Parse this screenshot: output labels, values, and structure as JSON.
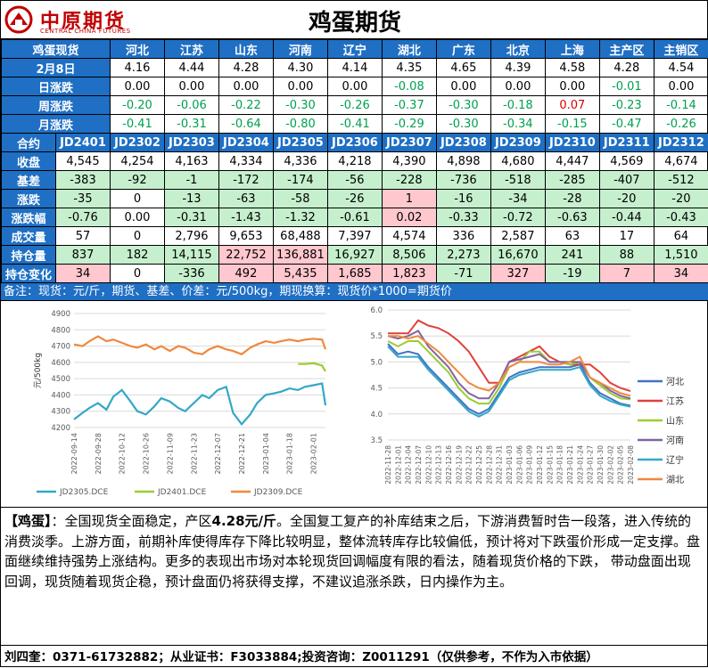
{
  "header": {
    "logo_cn": "中原期货",
    "logo_en": "CENTRAL CHINA FUTURES",
    "title": "鸡蛋期货"
  },
  "spot": {
    "row_label": "鸡蛋现货",
    "regions": [
      "河北",
      "江苏",
      "山东",
      "河南",
      "辽宁",
      "湖北",
      "广东",
      "北京",
      "上海",
      "主产区",
      "主销区"
    ],
    "rows": [
      {
        "label": "2月8日",
        "values": [
          "4.16",
          "4.44",
          "4.28",
          "4.30",
          "4.14",
          "4.35",
          "4.65",
          "4.39",
          "4.58",
          "4.28",
          "4.54"
        ],
        "colors": [
          "k",
          "k",
          "k",
          "k",
          "k",
          "k",
          "k",
          "k",
          "k",
          "k",
          "k"
        ]
      },
      {
        "label": "日涨跌",
        "values": [
          "0.00",
          "0.00",
          "0.00",
          "0.00",
          "0.00",
          "-0.08",
          "0.00",
          "0.00",
          "0.00",
          "-0.01",
          "0.00"
        ],
        "colors": [
          "k",
          "k",
          "k",
          "k",
          "k",
          "g",
          "k",
          "k",
          "k",
          "g",
          "k"
        ]
      },
      {
        "label": "周涨跌",
        "values": [
          "-0.20",
          "-0.06",
          "-0.22",
          "-0.30",
          "-0.26",
          "-0.37",
          "-0.30",
          "-0.18",
          "0.07",
          "-0.23",
          "-0.14"
        ],
        "colors": [
          "g",
          "g",
          "g",
          "g",
          "g",
          "g",
          "g",
          "g",
          "r",
          "g",
          "g"
        ]
      },
      {
        "label": "月涨跌",
        "values": [
          "-0.41",
          "-0.31",
          "-0.64",
          "-0.80",
          "-0.41",
          "-0.29",
          "-0.30",
          "-0.34",
          "-0.15",
          "-0.47",
          "-0.26"
        ],
        "colors": [
          "g",
          "g",
          "g",
          "g",
          "g",
          "g",
          "g",
          "g",
          "g",
          "g",
          "g"
        ]
      }
    ]
  },
  "futures": {
    "row_label": "合约",
    "contracts": [
      "JD2401",
      "JD2302",
      "JD2303",
      "JD2304",
      "JD2305",
      "JD2306",
      "JD2307",
      "JD2308",
      "JD2309",
      "JD2310",
      "JD2311",
      "JD2312"
    ],
    "rows": [
      {
        "label": "收盘",
        "values": [
          "4,545",
          "4,254",
          "4,163",
          "4,334",
          "4,336",
          "4,218",
          "4,390",
          "4,898",
          "4,680",
          "4,447",
          "4,569",
          "4,674"
        ],
        "bg": [
          "w",
          "w",
          "w",
          "w",
          "w",
          "w",
          "w",
          "w",
          "w",
          "w",
          "w",
          "w"
        ]
      },
      {
        "label": "基差",
        "values": [
          "-383",
          "-92",
          "-1",
          "-172",
          "-174",
          "-56",
          "-228",
          "-736",
          "-518",
          "-285",
          "-407",
          "-512"
        ],
        "bg": [
          "g",
          "g",
          "g",
          "g",
          "g",
          "g",
          "g",
          "g",
          "g",
          "g",
          "g",
          "g"
        ]
      },
      {
        "label": "涨跌",
        "values": [
          "-35",
          "0",
          "-13",
          "-63",
          "-58",
          "-26",
          "1",
          "-16",
          "-34",
          "-28",
          "-20",
          "-20"
        ],
        "bg": [
          "g",
          "w",
          "g",
          "g",
          "g",
          "g",
          "r",
          "g",
          "g",
          "g",
          "g",
          "g"
        ]
      },
      {
        "label": "涨跌幅",
        "values": [
          "-0.76",
          "0.00",
          "-0.31",
          "-1.43",
          "-1.32",
          "-0.61",
          "0.02",
          "-0.33",
          "-0.72",
          "-0.63",
          "-0.44",
          "-0.43"
        ],
        "bg": [
          "g",
          "w",
          "g",
          "g",
          "g",
          "g",
          "r",
          "g",
          "g",
          "g",
          "g",
          "g"
        ]
      },
      {
        "label": "成交量",
        "values": [
          "57",
          "0",
          "2,796",
          "9,653",
          "68,488",
          "7,397",
          "4,574",
          "336",
          "2,587",
          "63",
          "17",
          "64"
        ],
        "bg": [
          "w",
          "w",
          "w",
          "w",
          "w",
          "w",
          "w",
          "w",
          "w",
          "w",
          "w",
          "w"
        ]
      },
      {
        "label": "持仓量",
        "values": [
          "837",
          "182",
          "14,115",
          "22,752",
          "136,881",
          "16,927",
          "8,506",
          "2,273",
          "16,670",
          "241",
          "88",
          "1,510"
        ],
        "bg": [
          "g",
          "g",
          "g",
          "r",
          "r",
          "g",
          "g",
          "g",
          "g",
          "g",
          "g",
          "g"
        ]
      },
      {
        "label": "持仓变化",
        "values": [
          "34",
          "0",
          "-336",
          "492",
          "5,435",
          "1,685",
          "1,823",
          "-71",
          "327",
          "-19",
          "7",
          "34"
        ],
        "bg": [
          "r",
          "w",
          "g",
          "r",
          "r",
          "r",
          "r",
          "g",
          "r",
          "g",
          "r",
          "r"
        ]
      }
    ]
  },
  "note": "备注：现货：元/斤，期货、基差、价差：元/500kg，期现换算：现货价*1000=期货价",
  "chart_data": [
    {
      "type": "line",
      "ylabel": "元/500kg",
      "ylim": [
        4200,
        4900
      ],
      "yticks": [
        4200,
        4300,
        4400,
        4500,
        4600,
        4700,
        4800,
        4900
      ],
      "x_ticks": [
        "2022-09-14",
        "2022-09-28",
        "2022-10-12",
        "2022-10-26",
        "2022-11-09",
        "2022-11-23",
        "2022-12-07",
        "2022-12-21",
        "2023-01-04",
        "2023-01-18",
        "2023-02-01"
      ],
      "legend_position": "bottom",
      "series": [
        {
          "name": "JD2305.DCE",
          "color": "#33a8c7",
          "x": [
            "2022-09-14",
            "2022-09-19",
            "2022-09-23",
            "2022-09-28",
            "2022-10-03",
            "2022-10-07",
            "2022-10-12",
            "2022-10-17",
            "2022-10-21",
            "2022-10-26",
            "2022-10-31",
            "2022-11-04",
            "2022-11-09",
            "2022-11-14",
            "2022-11-18",
            "2022-11-23",
            "2022-11-28",
            "2022-12-02",
            "2022-12-07",
            "2022-12-12",
            "2022-12-16",
            "2022-12-21",
            "2022-12-26",
            "2022-12-30",
            "2023-01-04",
            "2023-01-09",
            "2023-01-13",
            "2023-01-18",
            "2023-01-23",
            "2023-01-27",
            "2023-02-01",
            "2023-02-06",
            "2023-02-08"
          ],
          "values": [
            4250,
            4290,
            4320,
            4350,
            4310,
            4390,
            4430,
            4360,
            4300,
            4280,
            4330,
            4380,
            4360,
            4320,
            4300,
            4350,
            4400,
            4380,
            4430,
            4450,
            4290,
            4220,
            4280,
            4350,
            4400,
            4410,
            4420,
            4440,
            4430,
            4450,
            4460,
            4470,
            4336
          ]
        },
        {
          "name": "JD2401.DCE",
          "color": "#9acd32",
          "x": [
            "2023-01-23",
            "2023-01-27",
            "2023-02-01",
            "2023-02-06",
            "2023-02-08"
          ],
          "values": [
            4590,
            4590,
            4595,
            4580,
            4545
          ]
        },
        {
          "name": "JD2309.DCE",
          "color": "#f0883e",
          "x": [
            "2022-09-14",
            "2022-09-19",
            "2022-09-23",
            "2022-09-28",
            "2022-10-03",
            "2022-10-07",
            "2022-10-12",
            "2022-10-17",
            "2022-10-21",
            "2022-10-26",
            "2022-10-31",
            "2022-11-04",
            "2022-11-09",
            "2022-11-14",
            "2022-11-18",
            "2022-11-23",
            "2022-11-28",
            "2022-12-02",
            "2022-12-07",
            "2022-12-12",
            "2022-12-16",
            "2022-12-21",
            "2022-12-26",
            "2022-12-30",
            "2023-01-04",
            "2023-01-09",
            "2023-01-13",
            "2023-01-18",
            "2023-01-23",
            "2023-01-27",
            "2023-02-01",
            "2023-02-06",
            "2023-02-08"
          ],
          "values": [
            4710,
            4700,
            4730,
            4760,
            4730,
            4740,
            4720,
            4700,
            4690,
            4710,
            4680,
            4700,
            4670,
            4700,
            4690,
            4660,
            4650,
            4680,
            4700,
            4680,
            4670,
            4650,
            4690,
            4710,
            4730,
            4720,
            4730,
            4740,
            4730,
            4740,
            4745,
            4740,
            4680
          ]
        }
      ]
    },
    {
      "type": "line",
      "ylim": [
        3.5,
        6.0
      ],
      "yticks": [
        3.5,
        4.0,
        4.5,
        5.0,
        5.5,
        6.0
      ],
      "x_ticks": [
        "2022-11-28",
        "2022-12-01",
        "2022-12-04",
        "2022-12-07",
        "2022-12-10",
        "2022-12-13",
        "2022-12-16",
        "2022-12-19",
        "2022-12-22",
        "2022-12-25",
        "2022-12-28",
        "2022-12-31",
        "2023-01-03",
        "2023-01-06",
        "2023-01-09",
        "2023-01-12",
        "2023-01-15",
        "2023-01-18",
        "2023-01-21",
        "2023-01-24",
        "2023-01-27",
        "2023-01-30",
        "2023-02-02",
        "2023-02-05",
        "2023-02-08"
      ],
      "legend_position": "right",
      "x": [
        "2022-11-28",
        "2022-12-01",
        "2022-12-04",
        "2022-12-07",
        "2022-12-10",
        "2022-12-13",
        "2022-12-16",
        "2022-12-19",
        "2022-12-22",
        "2022-12-25",
        "2022-12-28",
        "2022-12-31",
        "2023-01-03",
        "2023-01-06",
        "2023-01-09",
        "2023-01-12",
        "2023-01-15",
        "2023-01-18",
        "2023-01-21",
        "2023-01-24",
        "2023-01-27",
        "2023-01-30",
        "2023-02-02",
        "2023-02-05",
        "2023-02-08"
      ],
      "series": [
        {
          "name": "河北",
          "color": "#4472c4",
          "values": [
            5.35,
            5.15,
            5.2,
            5.15,
            4.9,
            4.7,
            4.5,
            4.3,
            4.1,
            4.0,
            4.1,
            4.4,
            4.7,
            4.8,
            4.85,
            4.9,
            4.9,
            4.9,
            4.9,
            4.95,
            4.6,
            4.4,
            4.3,
            4.2,
            4.16
          ]
        },
        {
          "name": "江苏",
          "color": "#e0403a",
          "values": [
            5.55,
            5.55,
            5.55,
            5.8,
            5.7,
            5.65,
            5.55,
            5.4,
            5.2,
            4.9,
            4.6,
            4.6,
            5.0,
            5.1,
            5.2,
            5.3,
            5.1,
            5.0,
            4.95,
            4.95,
            4.95,
            4.8,
            4.6,
            4.5,
            4.44
          ]
        },
        {
          "name": "山东",
          "color": "#9acd32",
          "values": [
            5.4,
            5.3,
            5.4,
            5.4,
            5.2,
            5.0,
            4.8,
            4.5,
            4.3,
            4.2,
            4.2,
            4.5,
            4.9,
            5.0,
            5.2,
            5.2,
            5.0,
            5.0,
            4.95,
            5.0,
            4.7,
            4.55,
            4.4,
            4.3,
            4.28
          ]
        },
        {
          "name": "河南",
          "color": "#8064a2",
          "values": [
            5.5,
            5.45,
            5.5,
            5.6,
            5.3,
            5.1,
            4.9,
            4.6,
            4.4,
            4.3,
            4.3,
            4.6,
            5.0,
            5.05,
            5.1,
            5.15,
            5.0,
            5.0,
            5.0,
            5.0,
            4.7,
            4.6,
            4.45,
            4.35,
            4.3
          ]
        },
        {
          "name": "辽宁",
          "color": "#33a8c7",
          "values": [
            5.3,
            5.1,
            5.1,
            5.1,
            4.85,
            4.65,
            4.45,
            4.25,
            4.05,
            3.95,
            4.05,
            4.35,
            4.65,
            4.75,
            4.8,
            4.85,
            4.85,
            4.85,
            4.85,
            4.9,
            4.55,
            4.35,
            4.25,
            4.18,
            4.14
          ]
        },
        {
          "name": "湖北",
          "color": "#f0883e",
          "values": [
            5.5,
            5.5,
            5.45,
            5.5,
            5.35,
            5.2,
            5.0,
            4.8,
            4.6,
            4.5,
            4.45,
            4.6,
            4.9,
            5.0,
            5.0,
            5.0,
            4.95,
            4.95,
            5.0,
            5.1,
            4.7,
            4.6,
            4.5,
            4.4,
            4.35
          ]
        }
      ]
    }
  ],
  "comment": {
    "lead": "【鸡蛋】",
    "lead_suffix": "：全国现货全面稳定，产区",
    "highlight": "4.28元/斤",
    "body": "。全国复工复产的补库结束之后，下游消费暂时告一段落，进入传统的消费淡季。上游方面，前期补库使得库存下降比较明显，整体流转库存比较偏低，预计将对下跌蛋价形成一定支撑。盘面继续维持强势上涨结构。更多的表现出市场对本轮现货回调幅度有限的看法，随着现货价格的下跌， 带动盘面出现回调，现货随着现货企稳，预计盘面仍将获得支撑，不建议追涨杀跌，日内操作为主。"
  },
  "footer": "刘四奎：0371-61732882；从业证书：F3033884;投资咨询：Z0011291（仅供参考，不作为入市依据）",
  "colors": {
    "header_blue": "#1f6fc4",
    "green_cell": "#c6efce",
    "red_cell": "#ffc7ce",
    "up": "#e00000",
    "down": "#00a050"
  }
}
